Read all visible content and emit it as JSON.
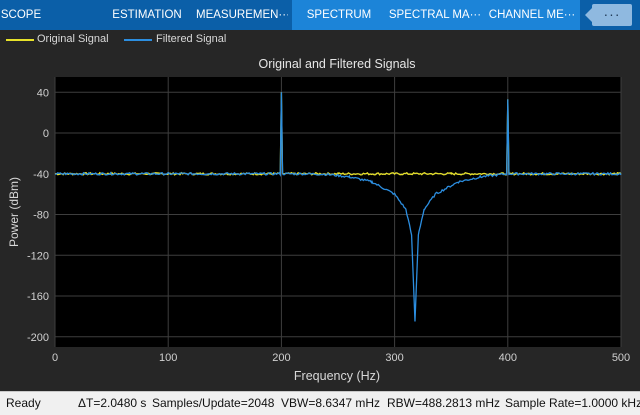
{
  "tabs": [
    {
      "label": "SCOPE",
      "active": false
    },
    {
      "label": "ESTIMATION",
      "active": false
    },
    {
      "label": "MEASUREMEN···",
      "active": false
    },
    {
      "label": "SPECTRUM",
      "active": true
    },
    {
      "label": "SPECTRAL MA···",
      "active": false
    },
    {
      "label": "CHANNEL ME···",
      "active": false
    }
  ],
  "overflow_label": "···",
  "legend": {
    "original": {
      "label": "Original Signal",
      "color": "#e8e22a"
    },
    "filtered": {
      "label": "Filtered Signal",
      "color": "#2c8ee0"
    }
  },
  "status": {
    "state": "Ready",
    "delta_t": "ΔT=2.0480 s",
    "samples_update": "Samples/Update=2048",
    "vbw": "VBW=8.6347 mHz",
    "rbw": "RBW=488.2813 mHz",
    "sample_rate": "Sample Rate=1.0000 kHz"
  },
  "chart_data": {
    "type": "line",
    "title": "Original and Filtered Signals",
    "xlabel": "Frequency (Hz)",
    "ylabel": "Power (dBm)",
    "xlim": [
      0,
      500
    ],
    "ylim": [
      -210,
      55
    ],
    "xticks": [
      0,
      100,
      200,
      300,
      400,
      500
    ],
    "yticks": [
      40,
      0,
      -40,
      -80,
      -120,
      -160,
      -200
    ],
    "grid": true,
    "series": [
      {
        "name": "Original Signal",
        "color": "#e8e22a",
        "x": [
          0,
          50,
          100,
          150,
          199,
          200,
          201,
          250,
          300,
          318,
          350,
          399,
          400,
          401,
          450,
          500
        ],
        "values": [
          -40,
          -40,
          -40,
          -40,
          -40,
          40,
          -40,
          -40,
          -40,
          -40,
          -40,
          -40,
          33,
          -40,
          -40,
          -40
        ]
      },
      {
        "name": "Filtered Signal",
        "color": "#2c8ee0",
        "x": [
          0,
          50,
          100,
          150,
          199,
          200,
          201,
          220,
          240,
          260,
          280,
          300,
          310,
          315,
          318,
          321,
          326,
          336,
          356,
          376,
          396,
          399,
          400,
          401,
          450,
          500
        ],
        "values": [
          -40,
          -40,
          -40,
          -40,
          -40,
          40,
          -40,
          -40,
          -40.5,
          -43,
          -48,
          -60,
          -75,
          -100,
          -185,
          -100,
          -75,
          -60,
          -48,
          -43,
          -40.5,
          -40,
          33,
          -40,
          -40,
          -40
        ]
      }
    ]
  }
}
